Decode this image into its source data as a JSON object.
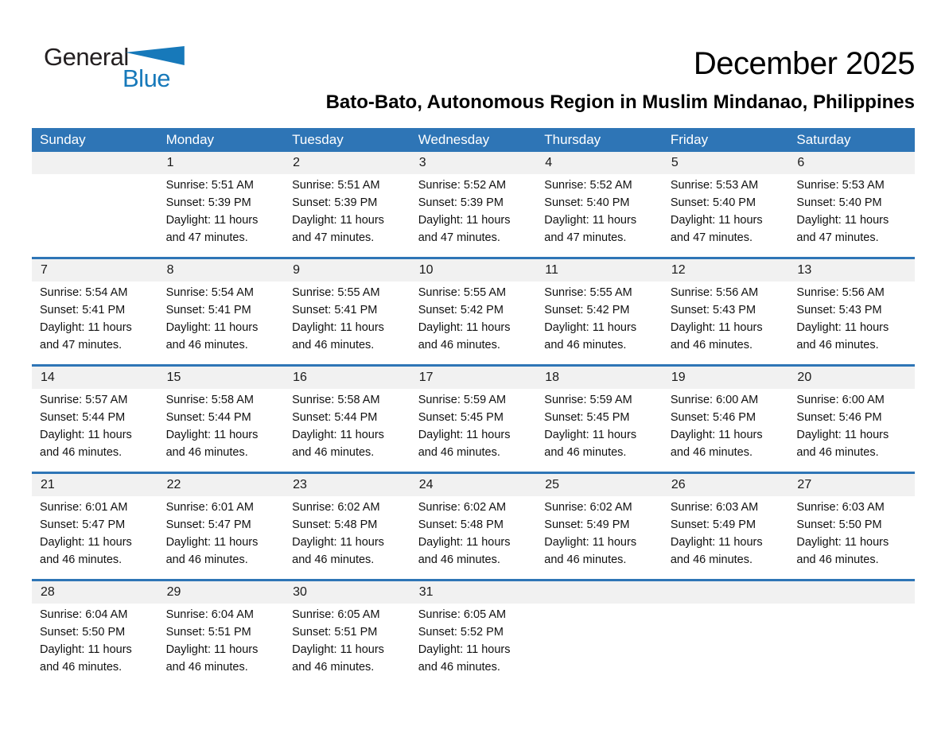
{
  "logo": {
    "text_black": "General",
    "text_blue": "Blue",
    "triangle_icon": "flag-triangle",
    "blue_color": "#1779BA",
    "black_color": "#231F20"
  },
  "header": {
    "title": "December 2025",
    "location": "Bato-Bato, Autonomous Region in Muslim Mindanao, Philippines"
  },
  "colors": {
    "header_bar": "#2E75B6",
    "row_separator": "#2E75B6",
    "day_number_band": "#F1F1F1",
    "weekday_text": "#FFFFFF"
  },
  "calendar": {
    "weekdays": [
      "Sunday",
      "Monday",
      "Tuesday",
      "Wednesday",
      "Thursday",
      "Friday",
      "Saturday"
    ],
    "weeks": [
      [
        null,
        {
          "day": "1",
          "lines": [
            "Sunrise: 5:51 AM",
            "Sunset: 5:39 PM",
            "Daylight: 11 hours",
            "and 47 minutes."
          ]
        },
        {
          "day": "2",
          "lines": [
            "Sunrise: 5:51 AM",
            "Sunset: 5:39 PM",
            "Daylight: 11 hours",
            "and 47 minutes."
          ]
        },
        {
          "day": "3",
          "lines": [
            "Sunrise: 5:52 AM",
            "Sunset: 5:39 PM",
            "Daylight: 11 hours",
            "and 47 minutes."
          ]
        },
        {
          "day": "4",
          "lines": [
            "Sunrise: 5:52 AM",
            "Sunset: 5:40 PM",
            "Daylight: 11 hours",
            "and 47 minutes."
          ]
        },
        {
          "day": "5",
          "lines": [
            "Sunrise: 5:53 AM",
            "Sunset: 5:40 PM",
            "Daylight: 11 hours",
            "and 47 minutes."
          ]
        },
        {
          "day": "6",
          "lines": [
            "Sunrise: 5:53 AM",
            "Sunset: 5:40 PM",
            "Daylight: 11 hours",
            "and 47 minutes."
          ]
        }
      ],
      [
        {
          "day": "7",
          "lines": [
            "Sunrise: 5:54 AM",
            "Sunset: 5:41 PM",
            "Daylight: 11 hours",
            "and 47 minutes."
          ]
        },
        {
          "day": "8",
          "lines": [
            "Sunrise: 5:54 AM",
            "Sunset: 5:41 PM",
            "Daylight: 11 hours",
            "and 46 minutes."
          ]
        },
        {
          "day": "9",
          "lines": [
            "Sunrise: 5:55 AM",
            "Sunset: 5:41 PM",
            "Daylight: 11 hours",
            "and 46 minutes."
          ]
        },
        {
          "day": "10",
          "lines": [
            "Sunrise: 5:55 AM",
            "Sunset: 5:42 PM",
            "Daylight: 11 hours",
            "and 46 minutes."
          ]
        },
        {
          "day": "11",
          "lines": [
            "Sunrise: 5:55 AM",
            "Sunset: 5:42 PM",
            "Daylight: 11 hours",
            "and 46 minutes."
          ]
        },
        {
          "day": "12",
          "lines": [
            "Sunrise: 5:56 AM",
            "Sunset: 5:43 PM",
            "Daylight: 11 hours",
            "and 46 minutes."
          ]
        },
        {
          "day": "13",
          "lines": [
            "Sunrise: 5:56 AM",
            "Sunset: 5:43 PM",
            "Daylight: 11 hours",
            "and 46 minutes."
          ]
        }
      ],
      [
        {
          "day": "14",
          "lines": [
            "Sunrise: 5:57 AM",
            "Sunset: 5:44 PM",
            "Daylight: 11 hours",
            "and 46 minutes."
          ]
        },
        {
          "day": "15",
          "lines": [
            "Sunrise: 5:58 AM",
            "Sunset: 5:44 PM",
            "Daylight: 11 hours",
            "and 46 minutes."
          ]
        },
        {
          "day": "16",
          "lines": [
            "Sunrise: 5:58 AM",
            "Sunset: 5:44 PM",
            "Daylight: 11 hours",
            "and 46 minutes."
          ]
        },
        {
          "day": "17",
          "lines": [
            "Sunrise: 5:59 AM",
            "Sunset: 5:45 PM",
            "Daylight: 11 hours",
            "and 46 minutes."
          ]
        },
        {
          "day": "18",
          "lines": [
            "Sunrise: 5:59 AM",
            "Sunset: 5:45 PM",
            "Daylight: 11 hours",
            "and 46 minutes."
          ]
        },
        {
          "day": "19",
          "lines": [
            "Sunrise: 6:00 AM",
            "Sunset: 5:46 PM",
            "Daylight: 11 hours",
            "and 46 minutes."
          ]
        },
        {
          "day": "20",
          "lines": [
            "Sunrise: 6:00 AM",
            "Sunset: 5:46 PM",
            "Daylight: 11 hours",
            "and 46 minutes."
          ]
        }
      ],
      [
        {
          "day": "21",
          "lines": [
            "Sunrise: 6:01 AM",
            "Sunset: 5:47 PM",
            "Daylight: 11 hours",
            "and 46 minutes."
          ]
        },
        {
          "day": "22",
          "lines": [
            "Sunrise: 6:01 AM",
            "Sunset: 5:47 PM",
            "Daylight: 11 hours",
            "and 46 minutes."
          ]
        },
        {
          "day": "23",
          "lines": [
            "Sunrise: 6:02 AM",
            "Sunset: 5:48 PM",
            "Daylight: 11 hours",
            "and 46 minutes."
          ]
        },
        {
          "day": "24",
          "lines": [
            "Sunrise: 6:02 AM",
            "Sunset: 5:48 PM",
            "Daylight: 11 hours",
            "and 46 minutes."
          ]
        },
        {
          "day": "25",
          "lines": [
            "Sunrise: 6:02 AM",
            "Sunset: 5:49 PM",
            "Daylight: 11 hours",
            "and 46 minutes."
          ]
        },
        {
          "day": "26",
          "lines": [
            "Sunrise: 6:03 AM",
            "Sunset: 5:49 PM",
            "Daylight: 11 hours",
            "and 46 minutes."
          ]
        },
        {
          "day": "27",
          "lines": [
            "Sunrise: 6:03 AM",
            "Sunset: 5:50 PM",
            "Daylight: 11 hours",
            "and 46 minutes."
          ]
        }
      ],
      [
        {
          "day": "28",
          "lines": [
            "Sunrise: 6:04 AM",
            "Sunset: 5:50 PM",
            "Daylight: 11 hours",
            "and 46 minutes."
          ]
        },
        {
          "day": "29",
          "lines": [
            "Sunrise: 6:04 AM",
            "Sunset: 5:51 PM",
            "Daylight: 11 hours",
            "and 46 minutes."
          ]
        },
        {
          "day": "30",
          "lines": [
            "Sunrise: 6:05 AM",
            "Sunset: 5:51 PM",
            "Daylight: 11 hours",
            "and 46 minutes."
          ]
        },
        {
          "day": "31",
          "lines": [
            "Sunrise: 6:05 AM",
            "Sunset: 5:52 PM",
            "Daylight: 11 hours",
            "and 46 minutes."
          ]
        },
        null,
        null,
        null
      ]
    ]
  }
}
